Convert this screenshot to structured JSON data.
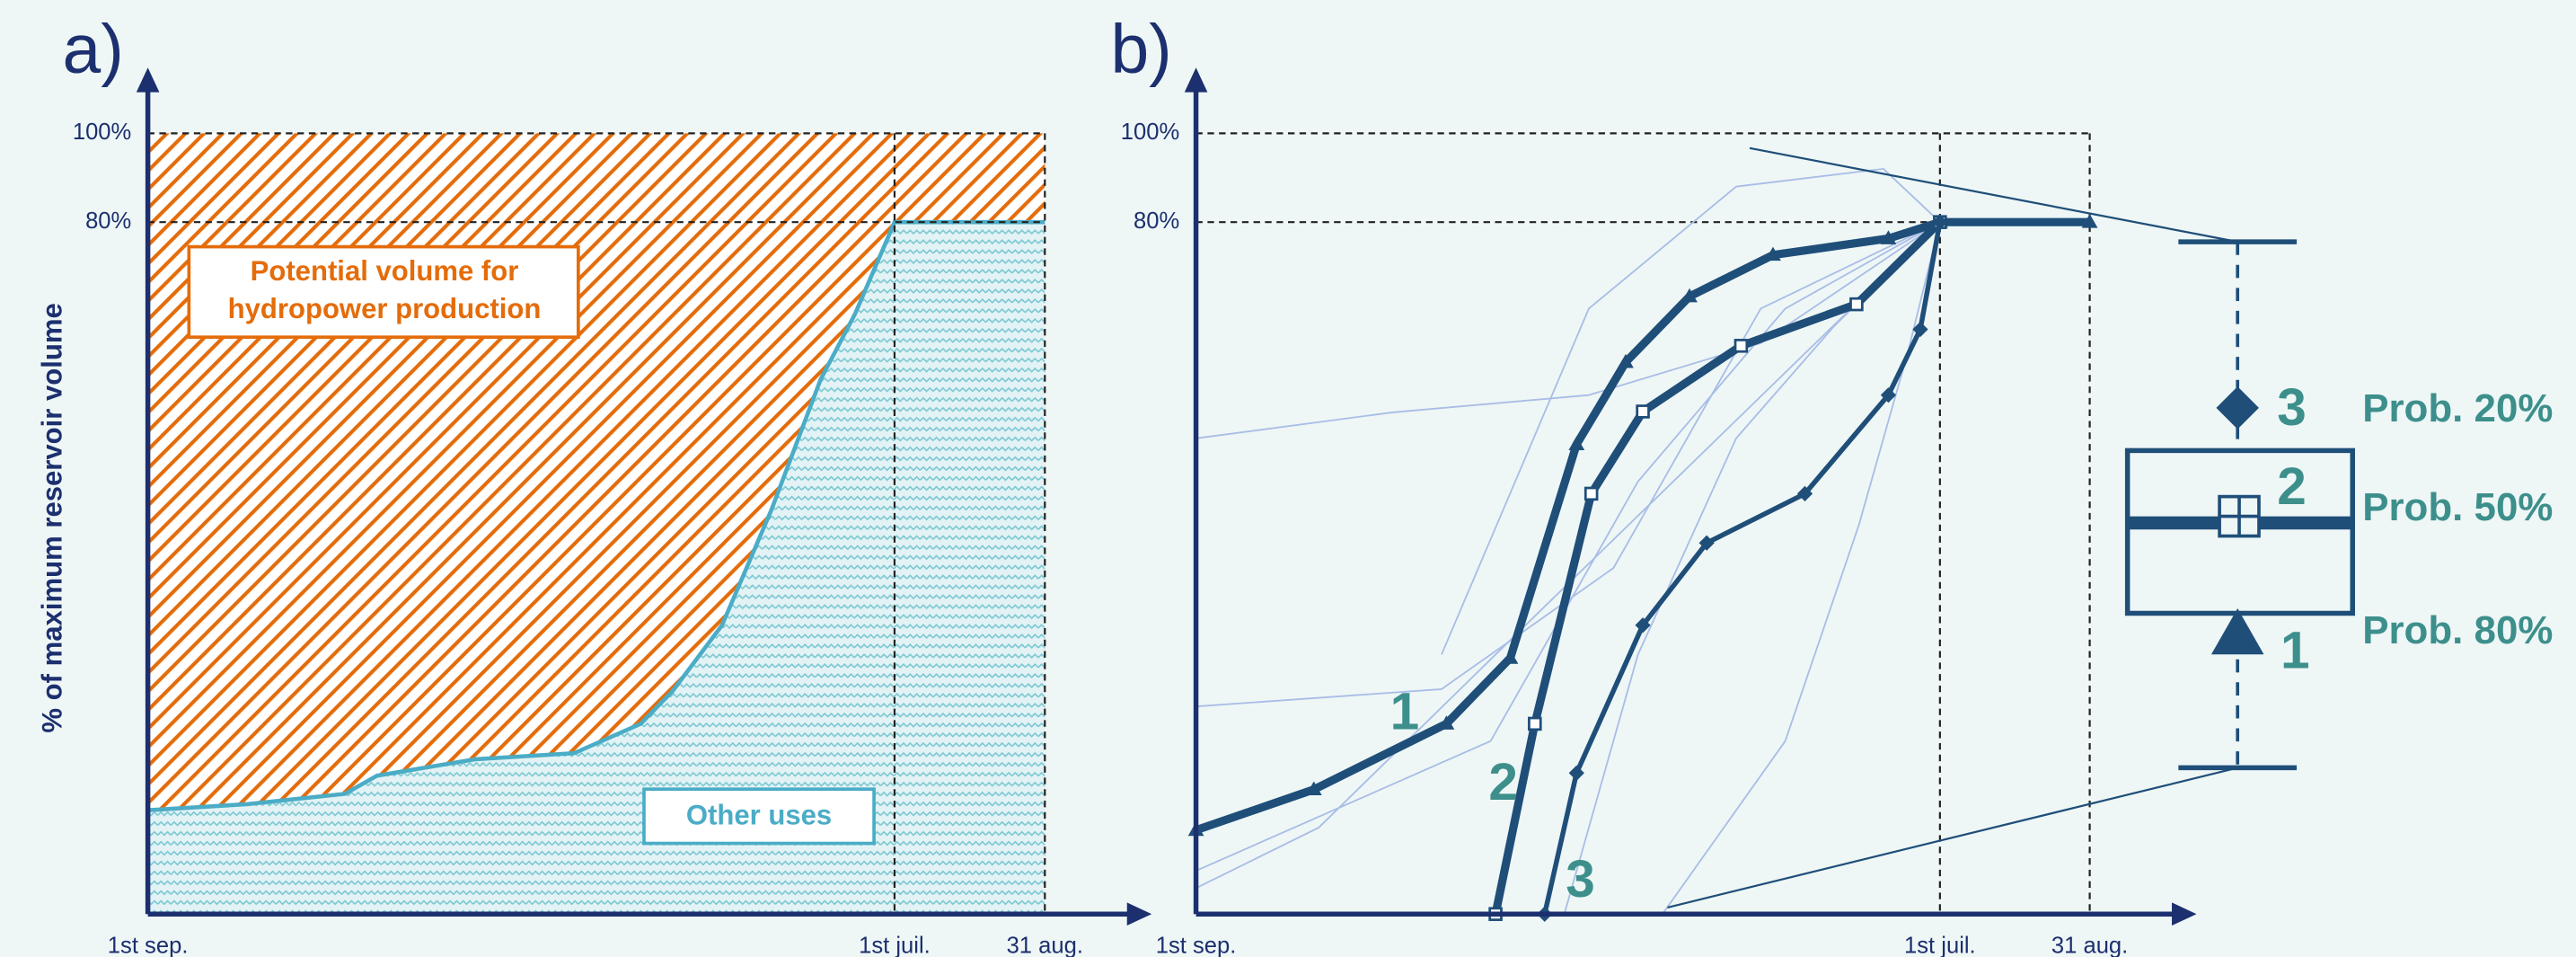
{
  "chart_data": [
    {
      "type": "area",
      "panel": "a)",
      "ylabel": "% of maximum reservoir volume",
      "x": [
        0,
        40,
        80,
        93,
        133,
        173,
        200,
        213,
        233,
        253,
        273,
        287,
        300,
        303,
        364
      ],
      "values": [
        12.0,
        12.7,
        13.9,
        16.0,
        17.9,
        18.6,
        22.0,
        25.8,
        33.4,
        46.7,
        61.8,
        69.4,
        78.0,
        80,
        80
      ],
      "color": "#4bacc6",
      "upper_color": "#e46c0a",
      "xlim": [
        0,
        364
      ],
      "ylim": [
        0,
        100
      ],
      "xticks": [
        {
          "value": 0,
          "label": "1st sep."
        },
        {
          "value": 303,
          "label": "1st juil."
        },
        {
          "value": 364,
          "label": "31 aug."
        }
      ],
      "yticks": [
        {
          "value": 80,
          "label": "80%"
        },
        {
          "value": 100,
          "label": "100%"
        }
      ],
      "upper_label": [
        "Potential volume for",
        "hydropower production"
      ],
      "lower_label": "Other uses"
    },
    {
      "type": "line",
      "panel": "b)",
      "xlim": [
        0,
        364
      ],
      "ylim": [
        0,
        100
      ],
      "xticks": [
        {
          "value": 0,
          "label": "1st sep."
        },
        {
          "value": 303,
          "label": "1st juil."
        },
        {
          "value": 364,
          "label": "31 aug."
        }
      ],
      "yticks": [
        {
          "value": 80,
          "label": "80%"
        },
        {
          "value": 100,
          "label": "100%"
        }
      ],
      "series": [
        {
          "color": "#a9bde6",
          "x": [
            0,
            80,
            160,
            230,
            303
          ],
          "values": [
            55,
            58,
            60,
            66,
            80
          ]
        },
        {
          "color": "#a9bde6",
          "x": [
            0,
            100,
            170,
            230,
            303
          ],
          "values": [
            24,
            26,
            40,
            70,
            80
          ]
        },
        {
          "color": "#a9bde6",
          "x": [
            0,
            120,
            180,
            240,
            303
          ],
          "values": [
            5,
            20,
            50,
            70,
            80
          ]
        },
        {
          "color": "#a9bde6",
          "x": [
            150,
            180,
            220,
            260,
            303
          ],
          "values": [
            0,
            30,
            55,
            68,
            80
          ]
        },
        {
          "color": "#a9bde6",
          "x": [
            190,
            240,
            270,
            290,
            303
          ],
          "values": [
            0,
            20,
            45,
            65,
            80
          ]
        },
        {
          "color": "#a9bde6",
          "x": [
            100,
            160,
            220,
            280,
            303
          ],
          "values": [
            30,
            70,
            88,
            92,
            80
          ]
        },
        {
          "color": "#a9bde6",
          "x": [
            0,
            50,
            140,
            303
          ],
          "values": [
            3,
            10,
            35,
            80
          ]
        },
        {
          "name": "1",
          "color": "#1f4e79",
          "marker": "triangle",
          "x": [
            0,
            48,
            102,
            128,
            155,
            175,
            201,
            235,
            282,
            303,
            364
          ],
          "values": [
            9.7,
            14.4,
            22.0,
            29.6,
            54.3,
            63.8,
            71.4,
            76.2,
            78.1,
            80,
            80
          ],
          "prob": "Prob. 80%"
        },
        {
          "name": "2",
          "color": "#1f4e79",
          "marker": "square",
          "x": [
            122,
            138,
            161,
            182,
            222,
            269,
            303
          ],
          "values": [
            0,
            22.0,
            48.6,
            58.1,
            65.7,
            70.5,
            80
          ],
          "prob": "Prob. 50%"
        },
        {
          "name": "3",
          "color": "#1f4e79",
          "marker": "diamond",
          "x": [
            142,
            155,
            182,
            208,
            248,
            282,
            295,
            303
          ],
          "values": [
            0,
            16.3,
            33.4,
            42.9,
            48.6,
            60.0,
            67.6,
            80
          ],
          "prob": "Prob. 20%"
        }
      ]
    }
  ]
}
